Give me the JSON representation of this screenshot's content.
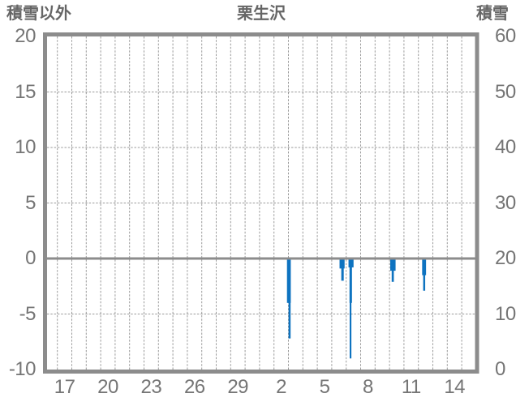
{
  "chart_data": {
    "type": "bar",
    "title": "栗生沢",
    "left_axis": {
      "label": "積雪以外",
      "ticks": [
        20,
        15,
        10,
        5,
        0,
        -5,
        -10
      ],
      "range": [
        -10,
        20
      ]
    },
    "right_axis": {
      "label": "積雪",
      "ticks": [
        60,
        50,
        40,
        30,
        20,
        10,
        0
      ],
      "range": [
        0,
        60
      ]
    },
    "x_axis": {
      "tick_labels": [
        "17",
        "20",
        "23",
        "26",
        "29",
        "2",
        "5",
        "8",
        "11",
        "14"
      ],
      "tick_step_days": 3,
      "gridline_step_days": 1,
      "span_days": 30
    },
    "grid": {
      "on": true,
      "style": "dashed"
    },
    "zero_line_value": 0,
    "legend": "none",
    "series": [
      {
        "name": "積雪以外",
        "axis": "left",
        "color": "#0e73c0",
        "bars": [
          {
            "day": 15.9,
            "width_days": 0.26,
            "value": -4.0
          },
          {
            "day": 16.01,
            "width_days": 0.14,
            "value": -7.2
          },
          {
            "day": 19.54,
            "width_days": 0.35,
            "value": -0.9
          },
          {
            "day": 19.66,
            "width_days": 0.17,
            "value": -2.0
          },
          {
            "day": 20.16,
            "width_days": 0.35,
            "value": -0.8
          },
          {
            "day": 20.23,
            "width_days": 0.17,
            "value": -4.0
          },
          {
            "day": 20.24,
            "width_days": 0.12,
            "value": -9.0
          },
          {
            "day": 23.05,
            "width_days": 0.37,
            "value": -1.1
          },
          {
            "day": 23.15,
            "width_days": 0.15,
            "value": -2.1
          },
          {
            "day": 25.26,
            "width_days": 0.27,
            "value": -1.5
          },
          {
            "day": 25.33,
            "width_days": 0.14,
            "value": -2.9
          }
        ]
      }
    ],
    "colors": {
      "bar": "#0e73c0",
      "axis_frame": "#8c8c8c",
      "gridline": "#9b9b9b",
      "tick_text": "#757575",
      "title_text": "#666666",
      "background": "#ffffff"
    }
  }
}
